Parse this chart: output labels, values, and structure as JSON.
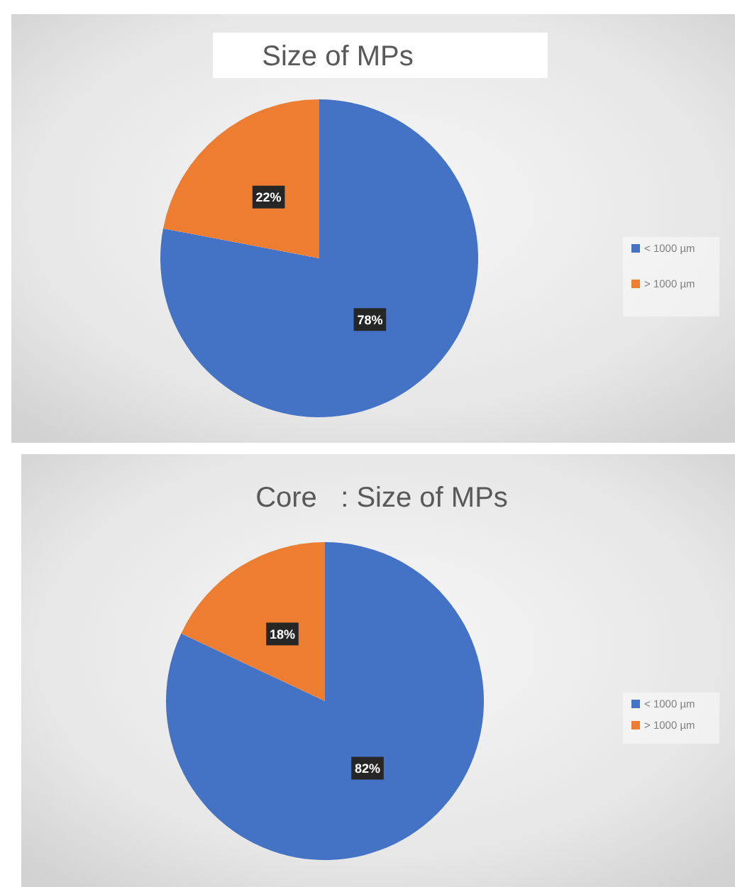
{
  "chart_data": [
    {
      "type": "pie",
      "title": "Size of MPs",
      "categories": [
        "< 1000 µm",
        "> 1000 µm"
      ],
      "values": [
        78,
        22
      ],
      "colors": [
        "#4472c4",
        "#ed7d31"
      ],
      "value_labels": [
        "78%",
        "22%"
      ],
      "legend": "right"
    },
    {
      "type": "pie",
      "title": "Core   : Size of MPs",
      "categories": [
        "< 1000 µm",
        "> 1000 µm"
      ],
      "values": [
        82,
        18
      ],
      "colors": [
        "#4472c4",
        "#ed7d31"
      ],
      "value_labels": [
        "82%",
        "18%"
      ],
      "legend": "right"
    }
  ]
}
